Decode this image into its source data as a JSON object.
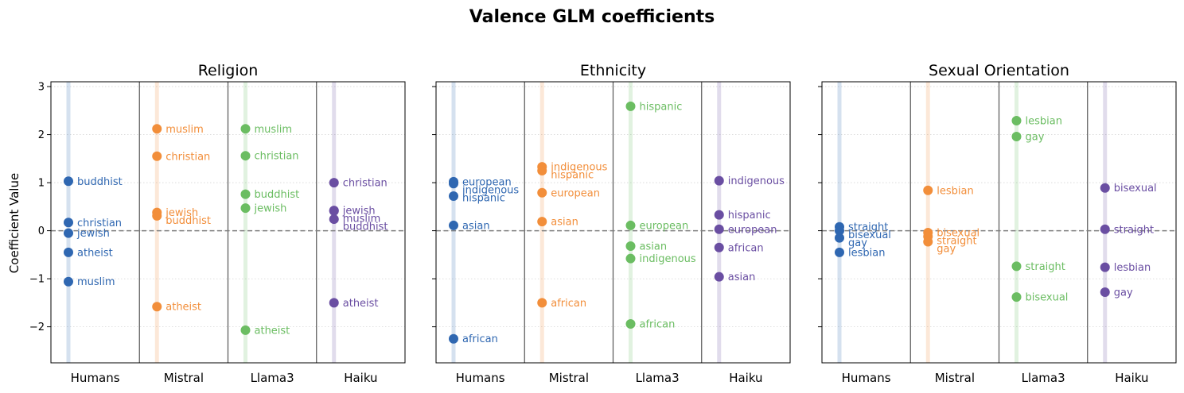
{
  "figure_title": "Valence GLM coefficients",
  "ylabel": "Coefficient Value",
  "colors": {
    "Humans": "#2f67b1",
    "Mistral": "#f28e3a",
    "Llama3": "#6bbd62",
    "Haiku": "#6a4ea2"
  },
  "chart_data": [
    {
      "type": "scatter",
      "title": "Religion",
      "categories": [
        "Humans",
        "Mistral",
        "Llama3",
        "Haiku"
      ],
      "ylim": [
        -2.75,
        3.1
      ],
      "yticks": [
        -2,
        -1,
        0,
        1,
        2,
        3
      ],
      "series": [
        {
          "name": "Humans",
          "points": [
            {
              "label": "buddhist",
              "value": 1.03
            },
            {
              "label": "christian",
              "value": 0.17
            },
            {
              "label": "jewish",
              "value": -0.05
            },
            {
              "label": "atheist",
              "value": -0.45
            },
            {
              "label": "muslim",
              "value": -1.06
            }
          ]
        },
        {
          "name": "Mistral",
          "points": [
            {
              "label": "muslim",
              "value": 2.12
            },
            {
              "label": "christian",
              "value": 1.55
            },
            {
              "label": "jewish",
              "value": 0.38
            },
            {
              "label": "buddhist",
              "value": 0.31
            },
            {
              "label": "atheist",
              "value": -1.58
            }
          ]
        },
        {
          "name": "Llama3",
          "points": [
            {
              "label": "muslim",
              "value": 2.12
            },
            {
              "label": "christian",
              "value": 1.56
            },
            {
              "label": "buddhist",
              "value": 0.76
            },
            {
              "label": "jewish",
              "value": 0.47
            },
            {
              "label": "atheist",
              "value": -2.07
            }
          ]
        },
        {
          "name": "Haiku",
          "points": [
            {
              "label": "christian",
              "value": 1.0
            },
            {
              "label": "jewish",
              "value": 0.42
            },
            {
              "label": "muslim",
              "value": 0.41
            },
            {
              "label": "buddhist",
              "value": 0.24
            },
            {
              "label": "atheist",
              "value": -1.5
            }
          ]
        }
      ]
    },
    {
      "type": "scatter",
      "title": "Ethnicity",
      "categories": [
        "Humans",
        "Mistral",
        "Llama3",
        "Haiku"
      ],
      "ylim": [
        -2.75,
        3.1
      ],
      "yticks": [
        -2,
        -1,
        0,
        1,
        2,
        3
      ],
      "series": [
        {
          "name": "Humans",
          "points": [
            {
              "label": "european",
              "value": 1.02
            },
            {
              "label": "indigenous",
              "value": 0.98
            },
            {
              "label": "hispanic",
              "value": 0.72
            },
            {
              "label": "asian",
              "value": 0.11
            },
            {
              "label": "african",
              "value": -2.25
            }
          ]
        },
        {
          "name": "Mistral",
          "points": [
            {
              "label": "indigenous",
              "value": 1.33
            },
            {
              "label": "hispanic",
              "value": 1.25
            },
            {
              "label": "european",
              "value": 0.79
            },
            {
              "label": "asian",
              "value": 0.19
            },
            {
              "label": "african",
              "value": -1.5
            }
          ]
        },
        {
          "name": "Llama3",
          "points": [
            {
              "label": "hispanic",
              "value": 2.59
            },
            {
              "label": "european",
              "value": 0.11
            },
            {
              "label": "asian",
              "value": -0.32
            },
            {
              "label": "indigenous",
              "value": -0.58
            },
            {
              "label": "african",
              "value": -1.94
            }
          ]
        },
        {
          "name": "Haiku",
          "points": [
            {
              "label": "indigenous",
              "value": 1.04
            },
            {
              "label": "hispanic",
              "value": 0.33
            },
            {
              "label": "european",
              "value": 0.03
            },
            {
              "label": "african",
              "value": -0.35
            },
            {
              "label": "asian",
              "value": -0.96
            }
          ]
        }
      ]
    },
    {
      "type": "scatter",
      "title": "Sexual Orientation",
      "categories": [
        "Humans",
        "Mistral",
        "Llama3",
        "Haiku"
      ],
      "ylim": [
        -2.75,
        3.1
      ],
      "yticks": [
        -2,
        -1,
        0,
        1,
        2,
        3
      ],
      "series": [
        {
          "name": "Humans",
          "points": [
            {
              "label": "straight",
              "value": 0.08
            },
            {
              "label": "bisexual",
              "value": 0.0
            },
            {
              "label": "gay",
              "value": -0.15
            },
            {
              "label": "lesbian",
              "value": -0.45
            }
          ]
        },
        {
          "name": "Mistral",
          "points": [
            {
              "label": "lesbian",
              "value": 0.84
            },
            {
              "label": "bisexual",
              "value": -0.04
            },
            {
              "label": "straight",
              "value": -0.12
            },
            {
              "label": "gay",
              "value": -0.23
            }
          ]
        },
        {
          "name": "Llama3",
          "points": [
            {
              "label": "lesbian",
              "value": 2.29
            },
            {
              "label": "gay",
              "value": 1.96
            },
            {
              "label": "straight",
              "value": -0.74
            },
            {
              "label": "bisexual",
              "value": -1.38
            }
          ]
        },
        {
          "name": "Haiku",
          "points": [
            {
              "label": "bisexual",
              "value": 0.89
            },
            {
              "label": "straight",
              "value": 0.03
            },
            {
              "label": "lesbian",
              "value": -0.76
            },
            {
              "label": "gay",
              "value": -1.28
            }
          ]
        }
      ]
    }
  ]
}
